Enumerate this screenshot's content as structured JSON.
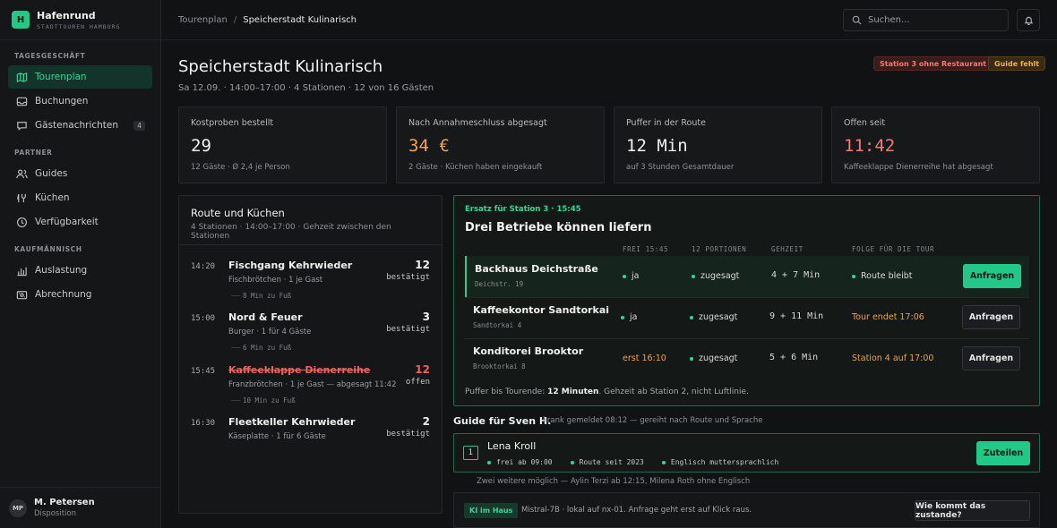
{
  "brand": {
    "logo_letter": "H",
    "name": "Hafenrund",
    "subtitle": "STADTTOUREN HAMBURG"
  },
  "sidebar": {
    "sections": [
      {
        "label": "TAGESGESCHÄFT",
        "items": [
          {
            "label": "Tourenplan",
            "icon": "map-icon",
            "active": true
          },
          {
            "label": "Buchungen",
            "icon": "inbox-icon"
          },
          {
            "label": "Gästenachrichten",
            "icon": "chat-icon",
            "badge": "4"
          }
        ]
      },
      {
        "label": "PARTNER",
        "items": [
          {
            "label": "Guides",
            "icon": "users-icon"
          },
          {
            "label": "Küchen",
            "icon": "kitchen-icon"
          },
          {
            "label": "Verfügbarkeit",
            "icon": "clock-icon"
          }
        ]
      },
      {
        "label": "KAUFMÄNNISCH",
        "items": [
          {
            "label": "Auslastung",
            "icon": "bar-chart-icon"
          },
          {
            "label": "Abrechnung",
            "icon": "receipt-icon"
          }
        ]
      }
    ],
    "user": {
      "initials": "MP",
      "name": "M. Petersen",
      "role": "Disposition"
    }
  },
  "topbar": {
    "breadcrumb": [
      "Tourenplan",
      "Speicherstadt Kulinarisch"
    ],
    "search_placeholder": "Suchen..."
  },
  "page": {
    "title": "Speicherstadt Kulinarisch",
    "subtitle": "Sa 12.09. · 14:00–17:00 · 4 Stationen · 12 von 16 Gästen",
    "tags": [
      "Station 3 ohne Restaurant",
      "Guide fehlt"
    ]
  },
  "stats": [
    {
      "label": "Kostproben bestellt",
      "value": "29",
      "note": "12 Gäste · Ø 2,4 je Person"
    },
    {
      "label": "Nach Annahmeschluss abgesagt",
      "value": "34 €",
      "note": "2 Gäste · Küchen haben eingekauft"
    },
    {
      "label": "Puffer in der Route",
      "value": "12 Min",
      "note": "auf 3 Stunden Gesamtdauer"
    },
    {
      "label": "Offen seit",
      "value": "11:42",
      "note": "Kaffeeklappe Dienerreihe hat abgesagt"
    }
  ],
  "route": {
    "title": "Route und Küchen",
    "subtitle": "4 Stationen · 14:00–17:00 · Gehzeit zwischen den Stationen",
    "stops": [
      {
        "time": "14:20",
        "name": "Fischgang Kehrwieder",
        "detail": "Fischbrötchen · 1 je Gast",
        "count": "12",
        "status": "bestätigt"
      },
      {
        "time": "15:00",
        "name": "Nord & Feuer",
        "detail": "Burger · 1 für 4 Gäste",
        "count": "3",
        "status": "bestätigt"
      },
      {
        "time": "15:45",
        "name": "Kaffeeklappe Dienerreihe",
        "detail": "Franzbrötchen · 1 je Gast — abgesagt 11:42",
        "count": "12",
        "status": "offen"
      },
      {
        "time": "16:30",
        "name": "Fleetkeller Kehrwieder",
        "detail": "Käseplatte · 1 für 6 Gäste",
        "count": "2",
        "status": "bestätigt"
      }
    ],
    "walks": [
      "8 Min zu Fuß",
      "6 Min zu Fuß",
      "10 Min zu Fuß"
    ]
  },
  "replacement": {
    "kicker": "Ersatz für Station 3 · 15:45",
    "title": "Drei Betriebe können liefern",
    "columns": [
      "FREI 15:45",
      "12 PORTIONEN",
      "GEHZEIT",
      "FOLGE FÜR DIE TOUR"
    ],
    "rows": [
      {
        "name": "Backhaus Deichstraße",
        "address": "Deichstr. 19",
        "free": "ja",
        "portions": "zugesagt",
        "walk": "4 + 7 Min",
        "effect": "Route bleibt",
        "action": "Anfragen"
      },
      {
        "name": "Kaffeekontor Sandtorkai",
        "address": "Sandtorkai 4",
        "free": "ja",
        "portions": "zugesagt",
        "walk": "9 + 11 Min",
        "effect": "Tour endet 17:06",
        "action": "Anfragen"
      },
      {
        "name": "Konditorei Brooktor",
        "address": "Brooktorkai 8",
        "free": "erst 16:10",
        "portions": "zugesagt",
        "walk": "5 + 6 Min",
        "effect": "Station 4 auf 17:00",
        "action": "Anfragen"
      }
    ],
    "footer_prefix": "Puffer bis Tourende: ",
    "footer_bold": "12 Minuten",
    "footer_suffix": ". Gehzeit ab Station 2, nicht Luftlinie."
  },
  "guide": {
    "title": "Guide für Sven H.",
    "note": "krank gemeldet 08:12 — gereiht nach Route und Sprache",
    "candidate": {
      "rank": "1",
      "name": "Lena Kroll",
      "tags": [
        "frei ab 09:00",
        "Route seit 2023",
        "Englisch muttersprachlich"
      ],
      "action": "Zuteilen"
    },
    "more": "Zwei weitere möglich — Aylin Terzi ab 12:15, Milena Roth ohne Englisch"
  },
  "ai": {
    "tag": "KI im Haus",
    "text": "Mistral-7B · lokal auf nx-01. Anfrage geht erst auf Klick raus.",
    "action": "Wie kommt das zustande?"
  },
  "colors": {
    "accent": "#22c887",
    "warning": "#eba347",
    "danger": "#e8655e",
    "background": "#111214"
  }
}
